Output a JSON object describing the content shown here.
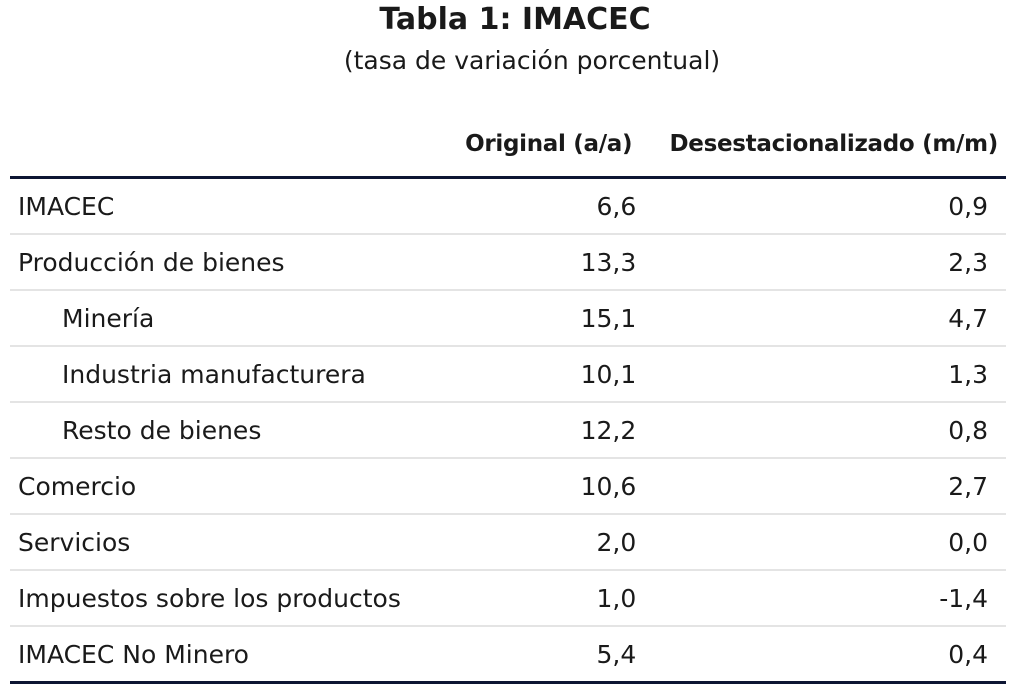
{
  "title": "Tabla 1:  IMACEC",
  "subtitle": "(tasa de variación porcentual)",
  "table": {
    "columns": [
      "",
      "Original (a/a)",
      "Desestacionalizado (m/m)"
    ],
    "rows": [
      {
        "label": "IMACEC",
        "indent": false,
        "original": "6,6",
        "desestacionalizado": "0,9"
      },
      {
        "label": "Producción de bienes",
        "indent": false,
        "original": "13,3",
        "desestacionalizado": "2,3"
      },
      {
        "label": "Minería",
        "indent": true,
        "original": "15,1",
        "desestacionalizado": "4,7"
      },
      {
        "label": "Industria manufacturera",
        "indent": true,
        "original": "10,1",
        "desestacionalizado": "1,3"
      },
      {
        "label": "Resto de bienes",
        "indent": true,
        "original": "12,2",
        "desestacionalizado": "0,8"
      },
      {
        "label": "Comercio",
        "indent": false,
        "original": "10,6",
        "desestacionalizado": "2,7"
      },
      {
        "label": "Servicios",
        "indent": false,
        "original": "2,0",
        "desestacionalizado": "0,0"
      },
      {
        "label": "Impuestos sobre los productos",
        "indent": false,
        "original": "1,0",
        "desestacionalizado": "-1,4"
      },
      {
        "label": "IMACEC No Minero",
        "indent": false,
        "original": "5,4",
        "desestacionalizado": "0,4"
      }
    ]
  },
  "colors": {
    "rule_dark": "#0d1633",
    "rule_light": "#e4e4e4",
    "text": "#1a1a1a"
  }
}
